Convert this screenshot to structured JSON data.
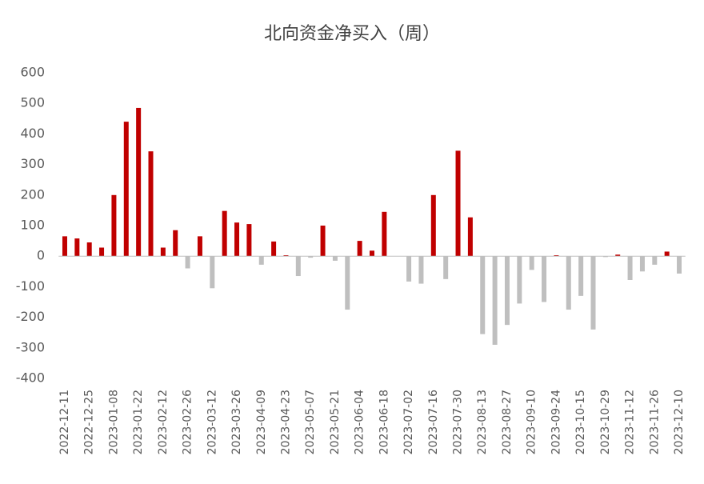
{
  "chart_data": {
    "type": "bar",
    "title": "北向资金净买入（周）",
    "categories": [
      "2022-12-11",
      null,
      "2022-12-25",
      null,
      "2023-01-08",
      null,
      "2023-01-22",
      null,
      "2023-02-12",
      null,
      "2023-02-26",
      null,
      "2023-03-12",
      null,
      "2023-03-26",
      null,
      "2023-04-09",
      null,
      "2023-04-23",
      null,
      "2023-05-07",
      null,
      "2023-05-21",
      null,
      "2023-06-04",
      null,
      "2023-06-18",
      null,
      "2023-07-02",
      null,
      "2023-07-16",
      null,
      "2023-07-30",
      null,
      "2023-08-13",
      null,
      "2023-08-27",
      null,
      "2023-09-10",
      null,
      "2023-09-24",
      null,
      "2023-10-15",
      null,
      "2023-10-29",
      null,
      "2023-11-12",
      null,
      "2023-11-26",
      null,
      "2023-12-10"
    ],
    "values": [
      65,
      58,
      45,
      28,
      200,
      440,
      485,
      343,
      28,
      85,
      -40,
      65,
      -105,
      148,
      110,
      105,
      -28,
      48,
      3,
      -65,
      -5,
      100,
      -15,
      -175,
      50,
      18,
      145,
      0,
      -83,
      -90,
      200,
      -75,
      345,
      127,
      -255,
      -290,
      -225,
      -155,
      -45,
      -150,
      3,
      -175,
      -130,
      -240,
      -3,
      5,
      -78,
      -50,
      -28,
      15,
      -57
    ],
    "colors": {
      "positive": "#c00000",
      "negative": "#bfbfbf"
    },
    "ylim": [
      -400,
      600
    ],
    "yticks": [
      -400,
      -300,
      -200,
      -100,
      0,
      100,
      200,
      300,
      400,
      500,
      600
    ],
    "grid": false
  }
}
